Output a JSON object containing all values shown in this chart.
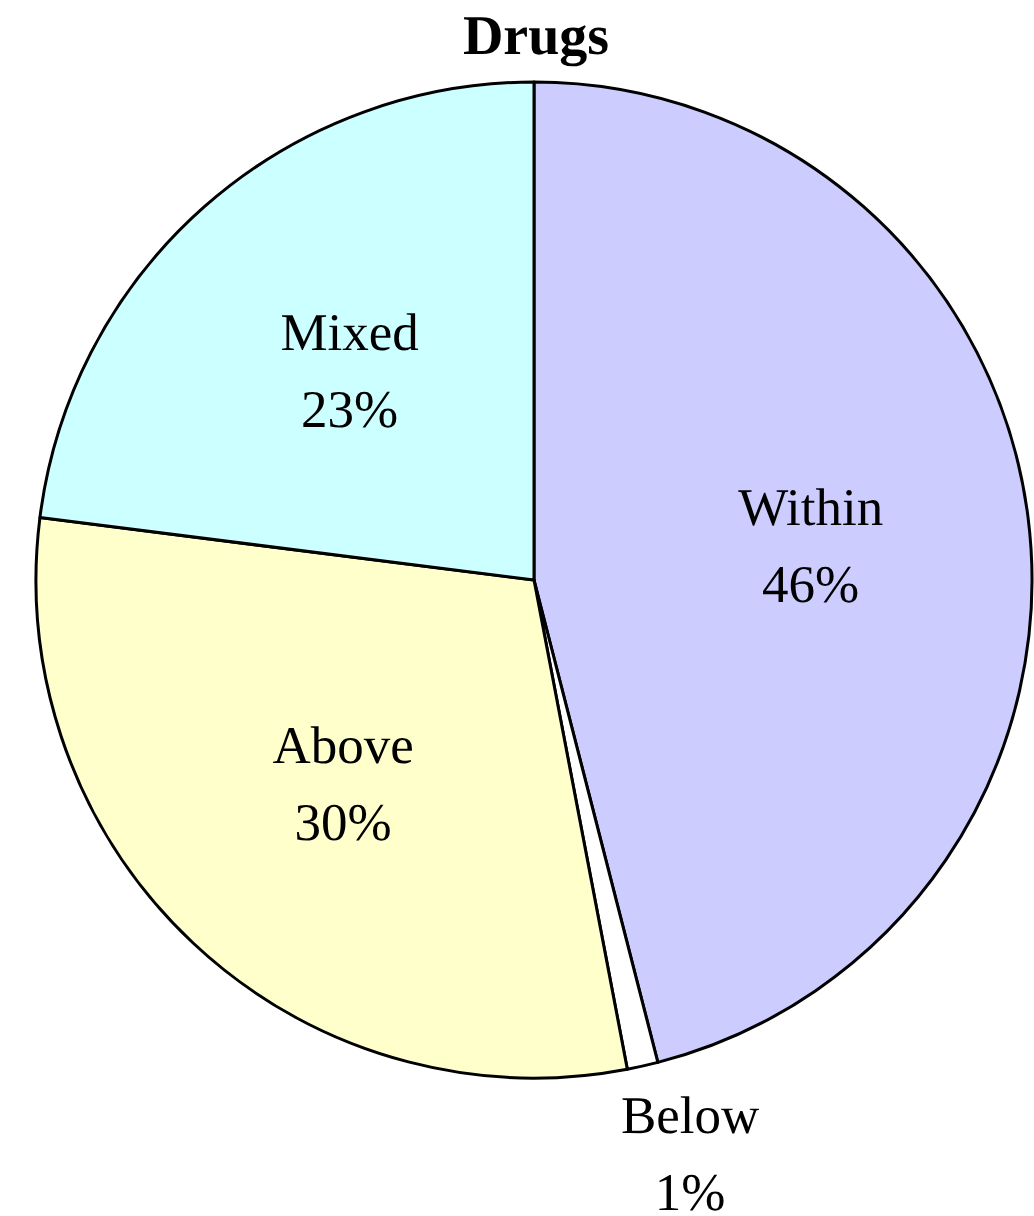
{
  "chart_data": {
    "type": "pie",
    "title": "Drugs",
    "categories": [
      "Within",
      "Below",
      "Above",
      "Mixed"
    ],
    "values": [
      46,
      1,
      30,
      23
    ],
    "colors": [
      "#ccccff",
      "#ffffff",
      "#ffffcc",
      "#ccffff"
    ],
    "value_labels": [
      "46%",
      "1%",
      "30%",
      "23%"
    ]
  }
}
